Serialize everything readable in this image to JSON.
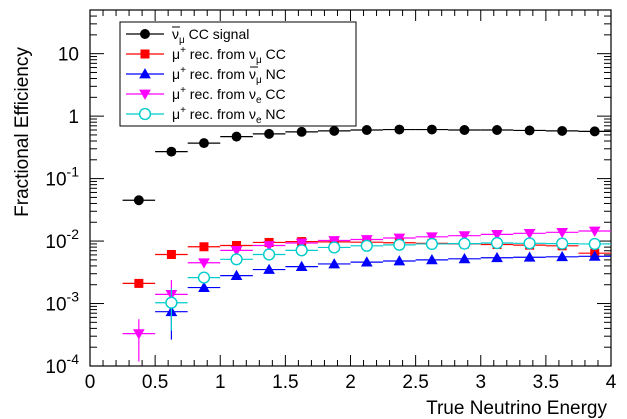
{
  "chart_data": {
    "type": "scatter",
    "title": "",
    "xlabel": "True Neutrino Energy",
    "ylabel": "Fractional Efficiency",
    "xlim": [
      0,
      4
    ],
    "ylim": [
      0.0001,
      50
    ],
    "yscale": "log",
    "x_ticks": [
      "0",
      "0.5",
      "1",
      "1.5",
      "2",
      "2.5",
      "3",
      "3.5",
      "4"
    ],
    "y_ticks": [
      {
        "base": "10",
        "exp": "-4"
      },
      {
        "base": "10",
        "exp": "-3"
      },
      {
        "base": "10",
        "exp": "-2"
      },
      {
        "base": "10",
        "exp": "-1"
      },
      {
        "base": "1",
        "exp": ""
      },
      {
        "base": "10",
        "exp": ""
      }
    ],
    "grid": false,
    "legend_position": "top-left",
    "bin_width": 0.25,
    "x": [
      0.375,
      0.625,
      0.875,
      1.125,
      1.375,
      1.625,
      1.875,
      2.125,
      2.375,
      2.625,
      2.875,
      3.125,
      3.375,
      3.625,
      3.875
    ],
    "series": [
      {
        "name": "ν̄μ CC signal",
        "label_parts": {
          "main": "ν",
          "overbar": true,
          "sub": "μ",
          "sup": "",
          "rest": " CC signal"
        },
        "color": "#000000",
        "marker": "circle",
        "values": [
          0.045,
          0.27,
          0.37,
          0.47,
          0.52,
          0.56,
          0.58,
          0.6,
          0.61,
          0.61,
          0.6,
          0.6,
          0.59,
          0.58,
          0.57
        ]
      },
      {
        "name": "μ+ rec. from νμ CC",
        "label_parts": {
          "main": "μ",
          "sup": "+",
          "rest": " rec. from ",
          "nu_sub": "μ",
          "nu_overbar": false,
          "tail": " CC"
        },
        "color": "#ff0000",
        "marker": "square",
        "values": [
          0.0021,
          0.0061,
          0.0081,
          0.0085,
          0.0095,
          0.0098,
          0.0097,
          0.0096,
          0.0094,
          0.0092,
          0.009,
          0.0088,
          0.0086,
          0.0084,
          0.0064
        ]
      },
      {
        "name": "μ+ rec. from ν̄μ NC",
        "label_parts": {
          "main": "μ",
          "sup": "+",
          "rest": " rec. from ",
          "nu_sub": "μ",
          "nu_overbar": true,
          "tail": " NC"
        },
        "color": "#0000ff",
        "marker": "triangle-up",
        "values": [
          null,
          0.00074,
          0.0018,
          0.0028,
          0.0035,
          0.0039,
          0.0043,
          0.0046,
          0.0048,
          0.005,
          0.0052,
          0.0054,
          0.0055,
          0.0056,
          0.0057
        ]
      },
      {
        "name": "μ+ rec. from νe CC",
        "label_parts": {
          "main": "μ",
          "sup": "+",
          "rest": " rec. from ",
          "nu_sub": "e",
          "nu_overbar": false,
          "tail": " CC"
        },
        "color": "#ff00ff",
        "marker": "triangle-down",
        "values": [
          0.00033,
          0.0014,
          0.0045,
          0.0071,
          0.0085,
          0.0093,
          0.0102,
          0.0106,
          0.0112,
          0.0117,
          0.0122,
          0.0128,
          0.0133,
          0.0138,
          0.0145
        ]
      },
      {
        "name": "μ+ rec. from νe NC",
        "label_parts": {
          "main": "μ",
          "sup": "+",
          "rest": " rec. from ",
          "nu_sub": "e",
          "nu_overbar": false,
          "tail": " NC"
        },
        "color": "#00cccc",
        "marker": "circle-open",
        "values": [
          null,
          0.00103,
          0.0026,
          0.0051,
          0.0061,
          0.0071,
          0.0079,
          0.0084,
          0.0087,
          0.009,
          0.0091,
          0.0093,
          0.0092,
          0.0091,
          0.009
        ]
      }
    ]
  }
}
